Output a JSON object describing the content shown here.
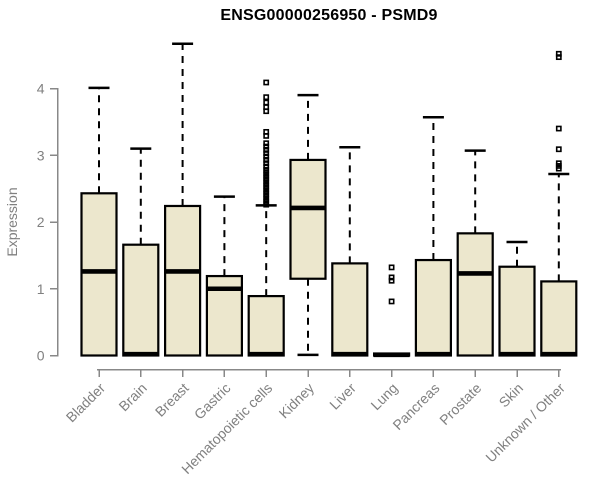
{
  "chart_data": {
    "type": "boxplot",
    "title": "ENSG00000256950 - PSMD9",
    "ylabel": "Expression",
    "xlabel": "",
    "ylim": [
      0,
      4.7
    ],
    "yticks": [
      0,
      1,
      2,
      3,
      4
    ],
    "grid": false,
    "legend": "none",
    "colors": {
      "box_fill": "#ece7cd",
      "box_stroke": "#000000",
      "median": "#000000",
      "whisker": "#000000",
      "axis": "#888888",
      "tick_label": "#808080",
      "title": "#000000"
    },
    "categories": [
      "Bladder",
      "Brain",
      "Breast",
      "Gastric",
      "Hematopoietic cells",
      "Kidney",
      "Liver",
      "Lung",
      "Pancreas",
      "Prostate",
      "Skin",
      "Unknown / Other"
    ],
    "boxes": [
      {
        "category": "Bladder",
        "q1": 0,
        "median": 1.26,
        "q3": 2.43,
        "whisker_low": 0,
        "whisker_high": 4.01,
        "outliers": []
      },
      {
        "category": "Brain",
        "q1": 0,
        "median": 0.02,
        "q3": 1.66,
        "whisker_low": 0,
        "whisker_high": 3.1,
        "outliers": []
      },
      {
        "category": "Breast",
        "q1": 0,
        "median": 1.26,
        "q3": 2.24,
        "whisker_low": 0,
        "whisker_high": 4.67,
        "outliers": []
      },
      {
        "category": "Gastric",
        "q1": 0,
        "median": 1.0,
        "q3": 1.19,
        "whisker_low": 0,
        "whisker_high": 2.38,
        "outliers": []
      },
      {
        "category": "Hematopoietic cells",
        "q1": 0,
        "median": 0.02,
        "q3": 0.89,
        "whisker_low": 0,
        "whisker_high": 2.25,
        "outliers": [
          2.26,
          2.3,
          2.34,
          2.38,
          2.42,
          2.46,
          2.5,
          2.54,
          2.58,
          2.62,
          2.66,
          2.7,
          2.74,
          2.78,
          2.83,
          2.88,
          2.93,
          2.98,
          3.03,
          3.08,
          3.13,
          3.18,
          3.29,
          3.35,
          3.66,
          3.72,
          3.79,
          3.87,
          4.09
        ]
      },
      {
        "category": "Kidney",
        "q1": 1.15,
        "median": 2.21,
        "q3": 2.93,
        "whisker_low": 0.01,
        "whisker_high": 3.9,
        "outliers": []
      },
      {
        "category": "Liver",
        "q1": 0,
        "median": 0.02,
        "q3": 1.38,
        "whisker_low": 0,
        "whisker_high": 3.12,
        "outliers": []
      },
      {
        "category": "Lung",
        "q1": 0,
        "median": 0.01,
        "q3": 0.03,
        "whisker_low": 0,
        "whisker_high": 0.03,
        "outliers": [
          0.81,
          1.12,
          1.17,
          1.32
        ]
      },
      {
        "category": "Pancreas",
        "q1": 0,
        "median": 0.02,
        "q3": 1.43,
        "whisker_low": 0,
        "whisker_high": 3.57,
        "outliers": []
      },
      {
        "category": "Prostate",
        "q1": 0,
        "median": 1.23,
        "q3": 1.83,
        "whisker_low": 0,
        "whisker_high": 3.07,
        "outliers": []
      },
      {
        "category": "Skin",
        "q1": 0,
        "median": 0.02,
        "q3": 1.33,
        "whisker_low": 0,
        "whisker_high": 1.7,
        "outliers": []
      },
      {
        "category": "Unknown / Other",
        "q1": 0,
        "median": 0.02,
        "q3": 1.11,
        "whisker_low": 0,
        "whisker_high": 2.72,
        "outliers": [
          2.8,
          2.84,
          2.88,
          3.09,
          3.4,
          4.47,
          4.52
        ]
      }
    ]
  }
}
